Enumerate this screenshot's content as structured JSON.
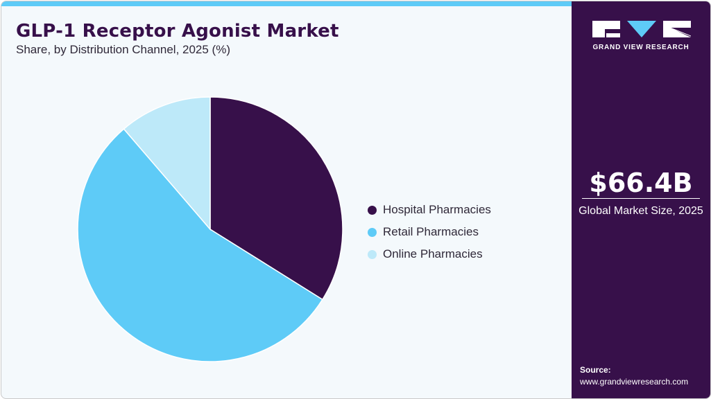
{
  "header": {
    "title": "GLP-1 Receptor Agonist Market",
    "subtitle": "Share, by Distribution Channel, 2025 (%)"
  },
  "legend": [
    {
      "label": "Hospital Pharmacies",
      "color": "#37104a"
    },
    {
      "label": "Retail Pharmacies",
      "color": "#5ecbf7"
    },
    {
      "label": "Online Pharmacies",
      "color": "#bde9f9"
    }
  ],
  "sidebar": {
    "brand": "GRAND VIEW RESEARCH",
    "market_value": "$66.4B",
    "market_label": "Global Market Size, 2025",
    "source_title": "Source:",
    "source_url": "www.grandviewresearch.com"
  },
  "colors": {
    "accent": "#5ecbf7",
    "brand": "#37104a",
    "background": "#f4f9fc"
  },
  "chart_data": {
    "type": "pie",
    "title": "GLP-1 Receptor Agonist Market",
    "subtitle": "Share, by Distribution Channel, 2025 (%)",
    "categories": [
      "Hospital Pharmacies",
      "Retail Pharmacies",
      "Online Pharmacies"
    ],
    "values": [
      33.9,
      54.8,
      11.3
    ],
    "colors": [
      "#37104a",
      "#5ecbf7",
      "#bde9f9"
    ],
    "start_angle": "12 o'clock, clockwise",
    "legend_position": "right"
  }
}
